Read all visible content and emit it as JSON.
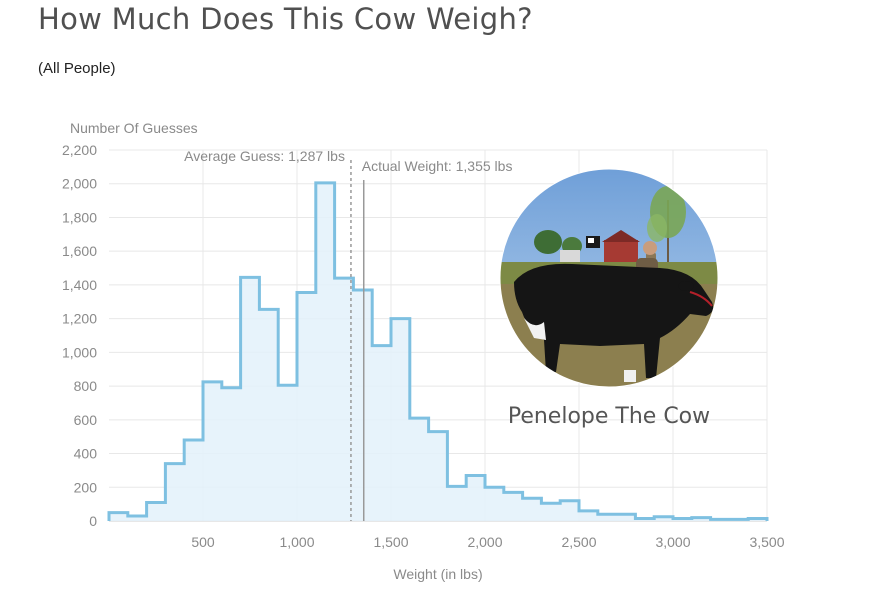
{
  "page": {
    "title": "How Much Does This Cow Weigh?",
    "subtitle": "(All People)"
  },
  "chart_data": {
    "type": "area",
    "title": "How Much Does This Cow Weigh?",
    "subtitle": "(All People)",
    "xlabel": "Weight (in lbs)",
    "ylabel": "Number Of Guesses",
    "xlim": [
      0,
      3500
    ],
    "ylim": [
      0,
      2200
    ],
    "xticks": [
      500,
      1000,
      1500,
      2000,
      2500,
      3000,
      3500
    ],
    "xtick_labels": [
      "500",
      "1,000",
      "1,500",
      "2,000",
      "2,500",
      "3,000",
      "3,500"
    ],
    "yticks": [
      0,
      200,
      400,
      600,
      800,
      1000,
      1200,
      1400,
      1600,
      1800,
      2000,
      2200
    ],
    "ytick_labels": [
      "0",
      "200",
      "400",
      "600",
      "800",
      "1,000",
      "1,200",
      "1,400",
      "1,600",
      "1,800",
      "2,000",
      "2,200"
    ],
    "grid": true,
    "bin_width": 100,
    "bin_starts": [
      0,
      100,
      200,
      300,
      400,
      500,
      600,
      700,
      800,
      900,
      1000,
      1100,
      1200,
      1300,
      1400,
      1500,
      1600,
      1700,
      1800,
      1900,
      2000,
      2100,
      2200,
      2300,
      2400,
      2500,
      2600,
      2700,
      2800,
      2900,
      3000,
      3100,
      3200,
      3300,
      3400
    ],
    "values": [
      50,
      30,
      110,
      340,
      480,
      825,
      790,
      1445,
      1255,
      805,
      1355,
      2005,
      1440,
      1370,
      1040,
      1200,
      610,
      530,
      205,
      270,
      200,
      170,
      135,
      105,
      120,
      60,
      40,
      40,
      15,
      25,
      15,
      20,
      10,
      10,
      15
    ],
    "reference_lines": [
      {
        "label": "Average Guess: 1,287 lbs",
        "x": 1287,
        "style": "dashed"
      },
      {
        "label": "Actual Weight: 1,355 lbs",
        "x": 1355,
        "style": "solid"
      }
    ],
    "colors": {
      "line": "#7ec0e1",
      "fill": "#e3f1fa",
      "grid": "#e8e8e8",
      "reference": "#999999"
    },
    "inset": {
      "caption": "Penelope The Cow"
    }
  }
}
